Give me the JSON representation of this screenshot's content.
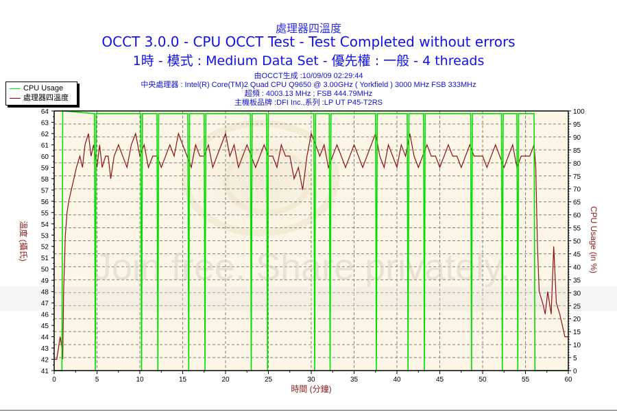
{
  "header": {
    "title": "處理器四溫度",
    "subtitle": "OCCT 3.0.0 - CPU OCCT Test - Test Completed without errors",
    "mode_line": "1時 - 模式 : Medium Data Set - 優先權 : 一般 - 4 threads",
    "generated": "由OCCT生成 :10/09/09 02:29:44",
    "cpu": "中央處理器 : Intel(R) Core(TM)2 Quad CPU Q9650 @ 3.00GHz ( Yorkfield ) 3000 MHz FSB 333MHz",
    "overclock": "超頻 : 4003.13 MHz ; FSB 444.79MHz",
    "motherboard": "主機板品牌 :DFI Inc.,系列 :LP UT P45-T2RS"
  },
  "legend": {
    "items": [
      {
        "label": "CPU Usage",
        "color": "#00e000"
      },
      {
        "label": "處理器四溫度",
        "color": "#8b0000"
      }
    ]
  },
  "watermark": "Join free. Share privately.",
  "colors": {
    "plot_bg": "#fdf6e6",
    "cpu_usage": "#00e000",
    "temperature": "#8b1010",
    "grid": "#808080",
    "axis_label": "#8b1a1a",
    "tick_label": "#000000"
  },
  "chart_data": {
    "type": "line",
    "title": "處理器四溫度",
    "xlabel": "時間 (分鐘)",
    "ylabel_left": "溫度 (攝氏)",
    "ylabel_right": "CPU Usage (in %)",
    "xlim": [
      0,
      60
    ],
    "ylim_left": [
      41,
      64
    ],
    "ylim_right": [
      0,
      100
    ],
    "x_ticks": [
      0,
      5,
      10,
      15,
      20,
      25,
      30,
      35,
      40,
      45,
      50,
      55,
      60
    ],
    "y_ticks_left": [
      41,
      42,
      43,
      44,
      45,
      46,
      47,
      48,
      49,
      50,
      51,
      52,
      53,
      54,
      55,
      56,
      57,
      58,
      59,
      60,
      61,
      62,
      63,
      64
    ],
    "y_ticks_right": [
      0,
      5,
      10,
      15,
      20,
      25,
      30,
      35,
      40,
      45,
      50,
      55,
      60,
      65,
      70,
      75,
      80,
      85,
      90,
      95,
      100
    ],
    "grid": true,
    "legend_position": "top-left outside",
    "series": [
      {
        "name": "處理器四溫度",
        "axis": "left",
        "points": [
          [
            0,
            42
          ],
          [
            0.3,
            42
          ],
          [
            0.5,
            43
          ],
          [
            0.7,
            44
          ],
          [
            0.9,
            43
          ],
          [
            1.0,
            42
          ],
          [
            1.1,
            48
          ],
          [
            1.3,
            53
          ],
          [
            1.5,
            55
          ],
          [
            1.7,
            56
          ],
          [
            2.0,
            57
          ],
          [
            2.3,
            58
          ],
          [
            2.6,
            59
          ],
          [
            3.0,
            60
          ],
          [
            3.3,
            59
          ],
          [
            3.6,
            61
          ],
          [
            4.0,
            62
          ],
          [
            4.3,
            60
          ],
          [
            4.6,
            61
          ],
          [
            5.0,
            59
          ],
          [
            5.3,
            61
          ],
          [
            5.6,
            59
          ],
          [
            6.0,
            60
          ],
          [
            6.3,
            60
          ],
          [
            6.6,
            58
          ],
          [
            7.0,
            60
          ],
          [
            7.5,
            61
          ],
          [
            8.0,
            60
          ],
          [
            8.5,
            59
          ],
          [
            9.0,
            61
          ],
          [
            9.5,
            62
          ],
          [
            10.0,
            60
          ],
          [
            10.5,
            61
          ],
          [
            11.0,
            59
          ],
          [
            11.5,
            60
          ],
          [
            12.0,
            60
          ],
          [
            12.5,
            59
          ],
          [
            13.0,
            60
          ],
          [
            13.5,
            61
          ],
          [
            14.0,
            60
          ],
          [
            14.5,
            62
          ],
          [
            15.0,
            61
          ],
          [
            15.5,
            60
          ],
          [
            16.0,
            59
          ],
          [
            16.5,
            61
          ],
          [
            17.0,
            60
          ],
          [
            17.5,
            60
          ],
          [
            18.0,
            61
          ],
          [
            18.5,
            59
          ],
          [
            19.0,
            60
          ],
          [
            19.5,
            61
          ],
          [
            20.0,
            62
          ],
          [
            20.5,
            60
          ],
          [
            21.0,
            61
          ],
          [
            21.5,
            59
          ],
          [
            22.0,
            60
          ],
          [
            22.5,
            61
          ],
          [
            23.0,
            60
          ],
          [
            23.5,
            59
          ],
          [
            24.0,
            60
          ],
          [
            24.5,
            61
          ],
          [
            25.0,
            60
          ],
          [
            25.5,
            60
          ],
          [
            26.0,
            59
          ],
          [
            26.5,
            61
          ],
          [
            27.0,
            60
          ],
          [
            27.5,
            60
          ],
          [
            28.0,
            58
          ],
          [
            28.5,
            59
          ],
          [
            29.0,
            57
          ],
          [
            29.5,
            60
          ],
          [
            30.0,
            62
          ],
          [
            30.5,
            61
          ],
          [
            31.0,
            60
          ],
          [
            31.5,
            61
          ],
          [
            32.0,
            59
          ],
          [
            32.5,
            60
          ],
          [
            33.0,
            61
          ],
          [
            33.5,
            60
          ],
          [
            34.0,
            59
          ],
          [
            34.5,
            60
          ],
          [
            35.0,
            61
          ],
          [
            35.5,
            60
          ],
          [
            36.0,
            59
          ],
          [
            36.5,
            60
          ],
          [
            37.0,
            61
          ],
          [
            37.5,
            62
          ],
          [
            38.0,
            60
          ],
          [
            38.5,
            59
          ],
          [
            39.0,
            61
          ],
          [
            39.5,
            60
          ],
          [
            40.0,
            59
          ],
          [
            40.5,
            61
          ],
          [
            41.0,
            60
          ],
          [
            41.5,
            62
          ],
          [
            42.0,
            60
          ],
          [
            42.5,
            59
          ],
          [
            43.0,
            60
          ],
          [
            43.5,
            61
          ],
          [
            44.0,
            60
          ],
          [
            44.5,
            60
          ],
          [
            45.0,
            59
          ],
          [
            45.5,
            60
          ],
          [
            46.0,
            61
          ],
          [
            46.5,
            60
          ],
          [
            47.0,
            60
          ],
          [
            47.5,
            59
          ],
          [
            48.0,
            60
          ],
          [
            48.5,
            61
          ],
          [
            49.0,
            60
          ],
          [
            49.5,
            60
          ],
          [
            50.0,
            60
          ],
          [
            50.5,
            59
          ],
          [
            51.0,
            60
          ],
          [
            51.5,
            61
          ],
          [
            52.0,
            60
          ],
          [
            52.5,
            59
          ],
          [
            53.0,
            60
          ],
          [
            53.5,
            61
          ],
          [
            54.0,
            59
          ],
          [
            54.5,
            60
          ],
          [
            55.0,
            60
          ],
          [
            55.5,
            60
          ],
          [
            56.0,
            61
          ],
          [
            56.2,
            59
          ],
          [
            56.4,
            52
          ],
          [
            56.6,
            48
          ],
          [
            57.0,
            47
          ],
          [
            57.3,
            46
          ],
          [
            57.6,
            48
          ],
          [
            58.0,
            46
          ],
          [
            58.3,
            52
          ],
          [
            58.6,
            47
          ],
          [
            59.0,
            46
          ],
          [
            59.3,
            45
          ],
          [
            59.6,
            44
          ],
          [
            60,
            44
          ]
        ]
      },
      {
        "name": "CPU Usage",
        "axis": "right",
        "points": [
          [
            0,
            0
          ],
          [
            0.9,
            0
          ],
          [
            1.0,
            100
          ],
          [
            4.7,
            99
          ],
          [
            4.8,
            0
          ],
          [
            4.9,
            99
          ],
          [
            10.1,
            99
          ],
          [
            10.2,
            0
          ],
          [
            10.3,
            99
          ],
          [
            12.0,
            99
          ],
          [
            12.1,
            0
          ],
          [
            12.2,
            99
          ],
          [
            15.6,
            99
          ],
          [
            15.7,
            0
          ],
          [
            15.8,
            99
          ],
          [
            17.5,
            99
          ],
          [
            17.6,
            0
          ],
          [
            17.7,
            99
          ],
          [
            22.9,
            99
          ],
          [
            23.0,
            0
          ],
          [
            23.1,
            99
          ],
          [
            24.8,
            99
          ],
          [
            24.9,
            0
          ],
          [
            25.0,
            99
          ],
          [
            30.3,
            99
          ],
          [
            30.4,
            0
          ],
          [
            30.5,
            99
          ],
          [
            32.1,
            99
          ],
          [
            32.2,
            0
          ],
          [
            32.3,
            99
          ],
          [
            37.5,
            99
          ],
          [
            37.6,
            0
          ],
          [
            37.7,
            99
          ],
          [
            41.2,
            99
          ],
          [
            41.3,
            0
          ],
          [
            41.4,
            99
          ],
          [
            43.1,
            99
          ],
          [
            43.2,
            0
          ],
          [
            43.3,
            99
          ],
          [
            48.6,
            99
          ],
          [
            48.7,
            0
          ],
          [
            48.8,
            99
          ],
          [
            52.2,
            99
          ],
          [
            52.3,
            0
          ],
          [
            52.4,
            99
          ],
          [
            54.0,
            99
          ],
          [
            54.1,
            0
          ],
          [
            54.2,
            99
          ],
          [
            56.0,
            99
          ],
          [
            56.1,
            0
          ],
          [
            60,
            0
          ]
        ]
      }
    ]
  }
}
